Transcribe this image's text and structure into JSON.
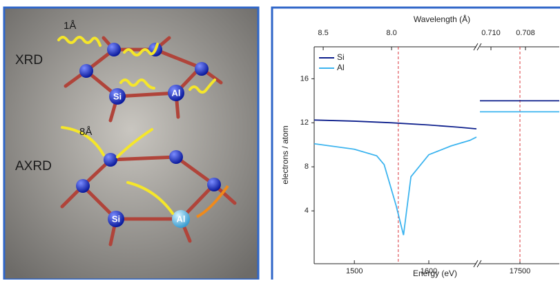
{
  "illustration": {
    "labels": [
      "XRD",
      "AXRD",
      "1Å",
      "8Å",
      "Si",
      "Al",
      "Si",
      "Al"
    ]
  },
  "chart_data": {
    "type": "line",
    "title": "Wavelength (Å)",
    "x_label": "Energy (eV)",
    "y_label": "electrons / atom",
    "ylim": [
      -0.8,
      18.9
    ],
    "yticks": [
      4,
      8,
      12,
      16
    ],
    "series": [
      {
        "name": "Si",
        "color": "#0d1f8c"
      },
      {
        "name": "Al",
        "color": "#3cb4ef"
      }
    ],
    "marker_color": "#d9343a",
    "segments": [
      {
        "xlim": [
          1446,
          1664
        ],
        "xticks": [
          1500,
          1600
        ],
        "x2lim": [
          8.566,
          7.379
        ],
        "x2ticks": [
          8.5,
          {
            "value": 8.0,
            "label": "8.0"
          }
        ],
        "markers": [
          1559
        ],
        "data": [
          {
            "x": [
              1446,
              1500,
              1550,
              1600,
              1640,
              1664
            ],
            "values": [
              12.25,
              12.15,
              12.0,
              11.8,
              11.6,
              11.45
            ]
          },
          {
            "x": [
              1446,
              1500,
              1530,
              1540,
              1556,
              1566,
              1576,
              1600,
              1630,
              1655,
              1664
            ],
            "values": [
              10.1,
              9.6,
              9.0,
              8.2,
              4.5,
              1.8,
              7.1,
              9.1,
              9.9,
              10.4,
              10.7
            ]
          }
        ]
      },
      {
        "xlim": [
          17442,
          17557
        ],
        "xticks": [
          17500
        ],
        "x2lim": [
          0.71064,
          0.70604
        ],
        "x2ticks": [
          {
            "value": 0.71,
            "label": "0.710"
          },
          0.708
        ],
        "markers": [
          17500
        ],
        "data": [
          {
            "x": [
              17442,
              17557
            ],
            "values": [
              14.0,
              14.0
            ]
          },
          {
            "x": [
              17442,
              17557
            ],
            "values": [
              13.0,
              13.0
            ]
          }
        ]
      }
    ]
  }
}
